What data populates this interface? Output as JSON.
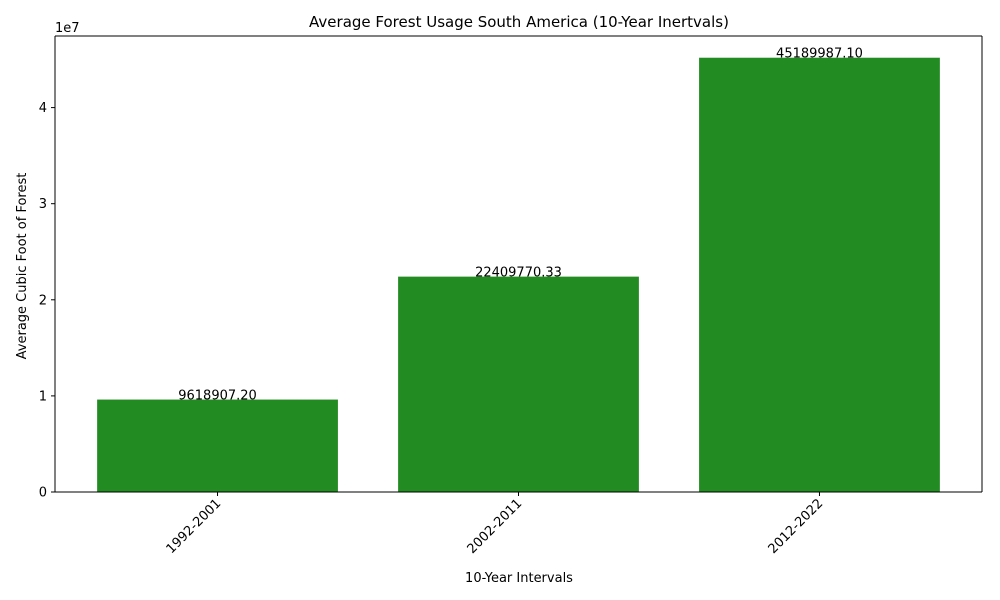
{
  "chart_data": {
    "type": "bar",
    "title": "Average Forest Usage South America (10-Year Inertvals)",
    "xlabel": "10-Year Intervals",
    "ylabel": "Average Cubic Foot of Forest",
    "categories": [
      "1992-2001",
      "2002-2011",
      "2012-2022"
    ],
    "values": [
      9618907.2,
      22409770.33,
      45189987.1
    ],
    "value_labels": [
      "9618907.20",
      "22409770.33",
      "45189987.10"
    ],
    "ylim": [
      0,
      47449486.5
    ],
    "yticks": [
      0,
      10000000,
      20000000,
      30000000,
      40000000
    ],
    "ytick_labels": [
      "0",
      "1",
      "2",
      "3",
      "4"
    ],
    "y_offset_label": "1e7",
    "bar_color": "#228b22",
    "grid": false,
    "legend": "none"
  }
}
